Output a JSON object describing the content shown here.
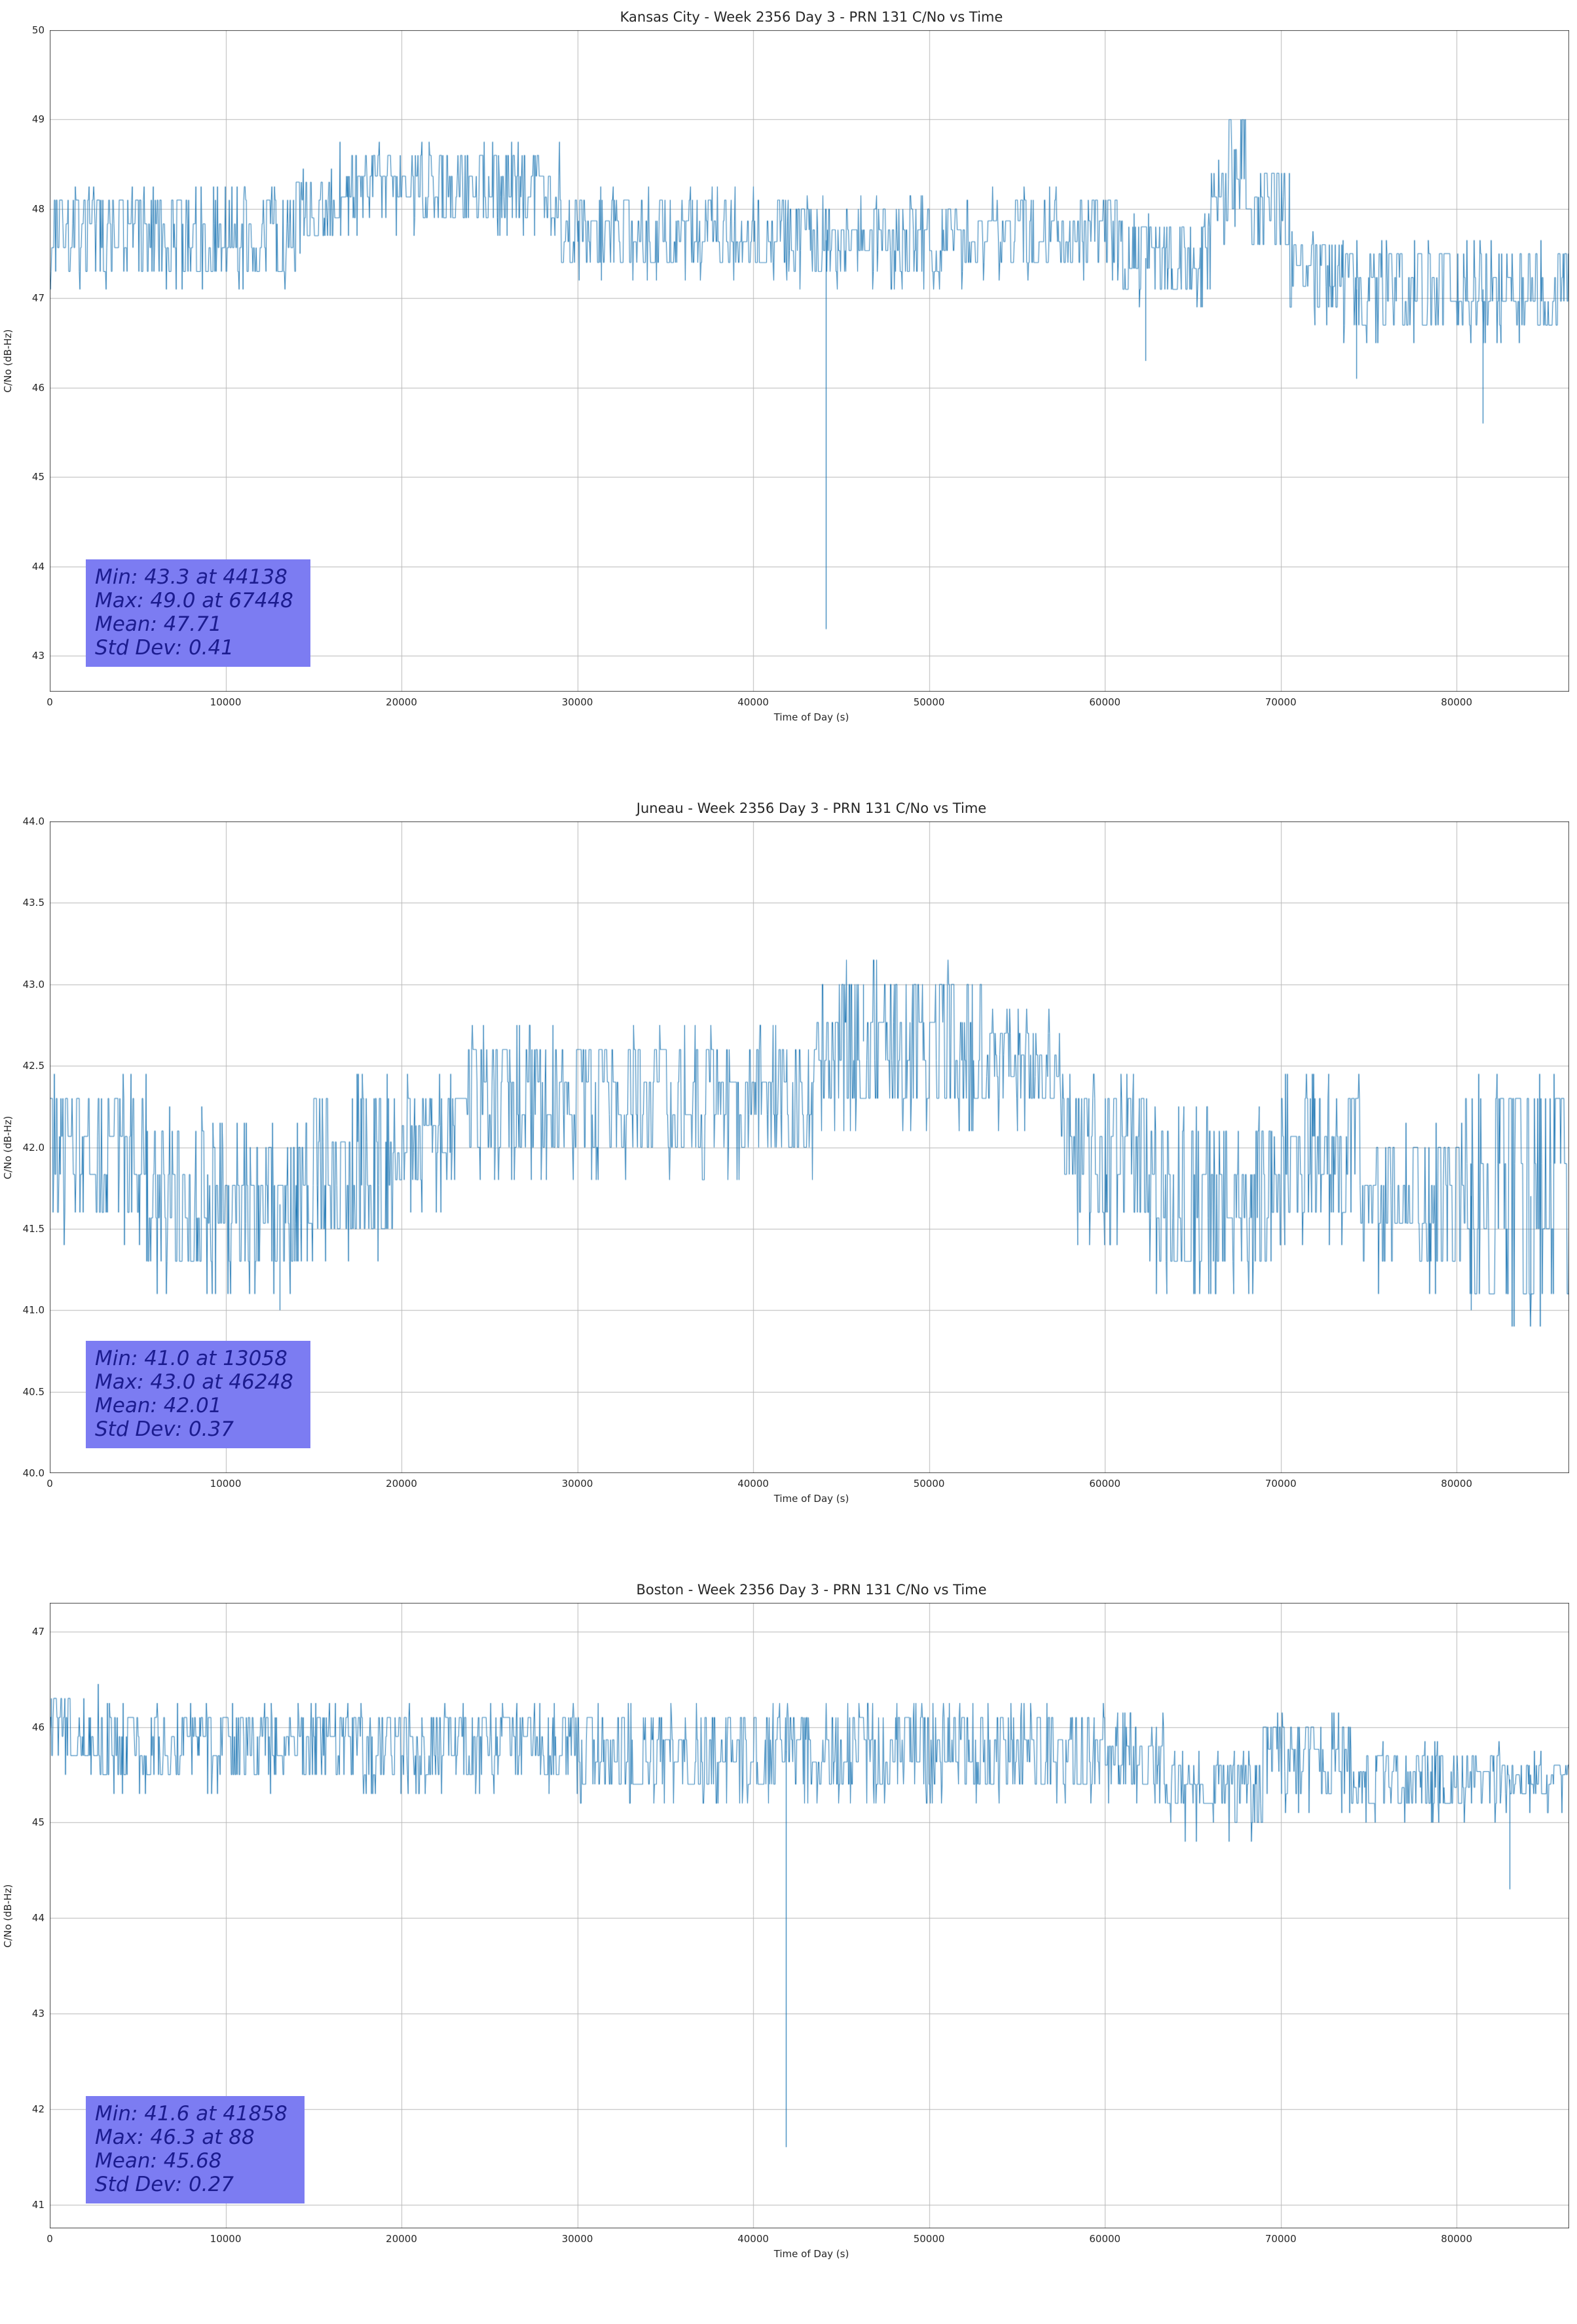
{
  "page": {
    "background": "#ffffff"
  },
  "chart_data": [
    {
      "type": "line",
      "title": "Kansas City - Week 2356 Day 3 - PRN 131 C/No vs Time",
      "xlabel": "Time of Day (s)",
      "ylabel": "C/No (dB-Hz)",
      "xlim": [
        0,
        86400
      ],
      "ylim": [
        42.6,
        50.0
      ],
      "xticks": [
        0,
        10000,
        20000,
        30000,
        40000,
        50000,
        60000,
        70000,
        80000
      ],
      "xtick_labels": [
        "0",
        "10000",
        "20000",
        "30000",
        "40000",
        "50000",
        "60000",
        "70000",
        "80000"
      ],
      "yticks": [
        43,
        44,
        45,
        46,
        47,
        48,
        49,
        50
      ],
      "ytick_labels": [
        "43",
        "44",
        "45",
        "46",
        "47",
        "48",
        "49",
        "50"
      ],
      "line_color": "#1f77b4",
      "grid_color": "#b8b8b8",
      "grid": true,
      "legend": false,
      "stats": {
        "min": 43.3,
        "min_t": 44138,
        "max": 49.0,
        "max_t": 67448,
        "mean": 47.71,
        "std": 0.41
      },
      "stats_box": {
        "bg": "#7c7cf2",
        "text_color": "#1c1c8f",
        "lines": [
          "Min: 43.3 at 44138",
          "Max: 49.0 at 67448",
          "Mean: 47.71",
          "Std Dev: 0.41"
        ]
      },
      "segments": [
        [
          0,
          14000,
          47.3,
          48.1
        ],
        [
          14000,
          16500,
          47.7,
          48.3
        ],
        [
          16500,
          20000,
          47.9,
          48.6
        ],
        [
          20000,
          29000,
          47.9,
          48.6
        ],
        [
          29000,
          42000,
          47.4,
          48.1
        ],
        [
          42000,
          52000,
          47.3,
          48.0
        ],
        [
          52000,
          61000,
          47.4,
          48.1
        ],
        [
          61000,
          66000,
          47.1,
          47.8
        ],
        [
          66000,
          67000,
          47.6,
          48.4
        ],
        [
          67000,
          68300,
          48.0,
          49.0
        ],
        [
          68300,
          70500,
          47.6,
          48.4
        ],
        [
          70500,
          73500,
          46.9,
          47.6
        ],
        [
          73500,
          80500,
          46.7,
          47.5
        ],
        [
          80500,
          86400,
          46.7,
          47.5
        ]
      ],
      "spikes": [
        {
          "t": 44138,
          "v": 43.3
        },
        {
          "t": 62300,
          "v": 46.3
        },
        {
          "t": 74300,
          "v": 46.1
        },
        {
          "t": 81500,
          "v": 45.6
        }
      ]
    },
    {
      "type": "line",
      "title": "Juneau - Week 2356 Day 3 - PRN 131 C/No vs Time",
      "xlabel": "Time of Day (s)",
      "ylabel": "C/No (dB-Hz)",
      "xlim": [
        0,
        86400
      ],
      "ylim": [
        40.0,
        44.0
      ],
      "xticks": [
        0,
        10000,
        20000,
        30000,
        40000,
        50000,
        60000,
        70000,
        80000
      ],
      "xtick_labels": [
        "0",
        "10000",
        "20000",
        "30000",
        "40000",
        "50000",
        "60000",
        "70000",
        "80000"
      ],
      "yticks": [
        40.0,
        40.5,
        41.0,
        41.5,
        42.0,
        42.5,
        43.0,
        43.5,
        44.0
      ],
      "ytick_labels": [
        "40.0",
        "40.5",
        "41.0",
        "41.5",
        "42.0",
        "42.5",
        "43.0",
        "43.5",
        "44.0"
      ],
      "line_color": "#1f77b4",
      "grid_color": "#b8b8b8",
      "grid": true,
      "legend": false,
      "stats": {
        "min": 41.0,
        "min_t": 13058,
        "max": 43.0,
        "max_t": 46248,
        "mean": 42.01,
        "std": 0.37
      },
      "stats_box": {
        "bg": "#7c7cf2",
        "text_color": "#1c1c8f",
        "lines": [
          "Min: 41.0 at 13058",
          "Max: 43.0 at 46248",
          "Mean: 42.01",
          "Std Dev: 0.37"
        ]
      },
      "segments": [
        [
          0,
          5500,
          41.6,
          42.3
        ],
        [
          5500,
          9000,
          41.3,
          42.1
        ],
        [
          9000,
          15000,
          41.3,
          42.0
        ],
        [
          15000,
          19500,
          41.5,
          42.3
        ],
        [
          19500,
          23500,
          41.8,
          42.3
        ],
        [
          23500,
          29000,
          42.0,
          42.6
        ],
        [
          29000,
          43500,
          42.0,
          42.6
        ],
        [
          43500,
          53000,
          42.3,
          43.0
        ],
        [
          53000,
          57500,
          42.3,
          42.7
        ],
        [
          57500,
          62500,
          41.6,
          42.3
        ],
        [
          62500,
          69500,
          41.3,
          42.1
        ],
        [
          69500,
          74500,
          41.6,
          42.3
        ],
        [
          74500,
          80500,
          41.3,
          42.0
        ],
        [
          80500,
          86400,
          41.1,
          42.3
        ]
      ],
      "spikes": [
        {
          "t": 13058,
          "v": 41.0
        },
        {
          "t": 46248,
          "v": 43.0
        },
        {
          "t": 80800,
          "v": 41.0
        },
        {
          "t": 84200,
          "v": 41.0
        }
      ]
    },
    {
      "type": "line",
      "title": "Boston - Week 2356 Day 3 - PRN 131 C/No vs Time",
      "xlabel": "Time of Day (s)",
      "ylabel": "C/No (dB-Hz)",
      "xlim": [
        0,
        86400
      ],
      "ylim": [
        40.75,
        47.3
      ],
      "xticks": [
        0,
        10000,
        20000,
        30000,
        40000,
        50000,
        60000,
        70000,
        80000
      ],
      "xtick_labels": [
        "0",
        "10000",
        "20000",
        "30000",
        "40000",
        "50000",
        "60000",
        "70000",
        "80000"
      ],
      "yticks": [
        41,
        42,
        43,
        44,
        45,
        46,
        47
      ],
      "ytick_labels": [
        "41",
        "42",
        "43",
        "44",
        "45",
        "46",
        "47"
      ],
      "line_color": "#1f77b4",
      "grid_color": "#b8b8b8",
      "grid": true,
      "legend": false,
      "stats": {
        "min": 41.6,
        "min_t": 41858,
        "max": 46.3,
        "max_t": 88,
        "mean": 45.68,
        "std": 0.27
      },
      "stats_box": {
        "bg": "#7c7cf2",
        "text_color": "#1c1c8f",
        "lines": [
          "Min: 41.6 at 41858",
          "Max: 46.3 at 88",
          "Mean: 45.68",
          "Std Dev: 0.27"
        ]
      },
      "segments": [
        [
          0,
          2800,
          45.7,
          46.3
        ],
        [
          2800,
          30000,
          45.5,
          46.1
        ],
        [
          30000,
          60000,
          45.4,
          46.1
        ],
        [
          60000,
          63500,
          45.4,
          46.0
        ],
        [
          63500,
          69000,
          45.0,
          45.6
        ],
        [
          69000,
          74000,
          45.3,
          46.0
        ],
        [
          74000,
          82500,
          45.2,
          45.7
        ],
        [
          82500,
          86400,
          45.3,
          45.6
        ]
      ],
      "spikes": [
        {
          "t": 88,
          "v": 46.3
        },
        {
          "t": 41858,
          "v": 41.6
        },
        {
          "t": 83000,
          "v": 44.3
        }
      ]
    }
  ]
}
